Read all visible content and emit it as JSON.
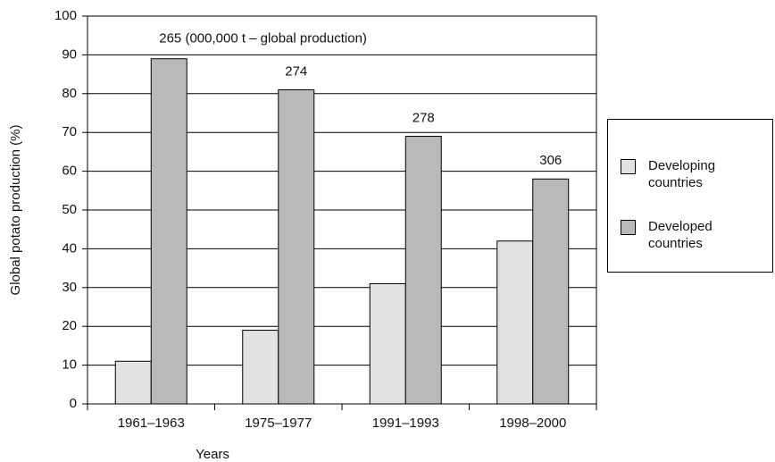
{
  "chart_data": {
    "type": "bar",
    "x_label": "Years",
    "y_label": "Global potato production (%)",
    "categories": [
      "1961–1963",
      "1975–1977",
      "1991–1993",
      "1998–2000"
    ],
    "series": [
      {
        "name": "Developing countries",
        "color": "#e2e2e2",
        "values": [
          11,
          19,
          31,
          42
        ]
      },
      {
        "name": "Developed countries",
        "color": "#b9b9b9",
        "values": [
          89,
          81,
          69,
          58
        ]
      }
    ],
    "annotations": [
      "265 (000,000 t – global production)",
      "274",
      "278",
      "306"
    ],
    "ylim": [
      0,
      100
    ],
    "yticks": [
      0,
      10,
      20,
      30,
      40,
      50,
      60,
      70,
      80,
      90,
      100
    ],
    "grid": true,
    "legend": "right"
  }
}
